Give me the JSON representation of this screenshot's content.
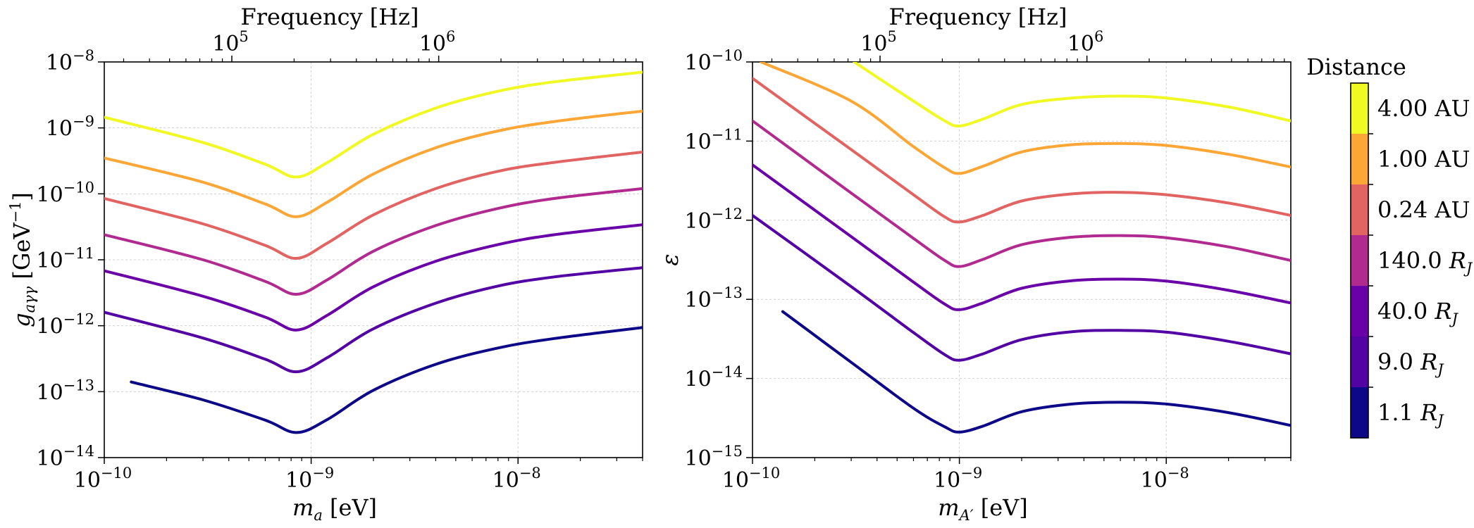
{
  "chart_data": [
    {
      "type": "line",
      "xscale": "log",
      "yscale": "log",
      "xlim": [
        1e-10,
        4e-08
      ],
      "ylim": [
        1e-14,
        1e-08
      ],
      "xlabel": "m_a [eV]",
      "ylabel": "g_aγγ [GeV^-1]",
      "top_xlabel": "Frequency [Hz]",
      "x_ticks": [
        "10^-10",
        "10^-9",
        "10^-8"
      ],
      "y_ticks": [
        "10^-14",
        "10^-13",
        "10^-12",
        "10^-11",
        "10^-10",
        "10^-9",
        "10^-8"
      ],
      "top_ticks": [
        "10^5",
        "10^6"
      ],
      "grid": true,
      "series": [
        {
          "name": "4.00 AU",
          "color": "#f0f921",
          "x": [
            1e-10,
            3e-10,
            6e-10,
            8.5e-10,
            1.2e-09,
            2e-09,
            4e-09,
            8e-09,
            1.5e-08,
            4e-08
          ],
          "y": [
            1.45e-09,
            6e-10,
            2.8e-10,
            1.8e-10,
            3e-10,
            8e-10,
            2e-09,
            3.6e-09,
            5e-09,
            7e-09
          ]
        },
        {
          "name": "1.00 AU",
          "color": "#fca636",
          "x": [
            1e-10,
            3e-10,
            6e-10,
            8.5e-10,
            1.2e-09,
            2e-09,
            4e-09,
            8e-09,
            1.5e-08,
            4e-08
          ],
          "y": [
            3.5e-10,
            1.5e-10,
            7e-11,
            4.5e-11,
            7.5e-11,
            2e-10,
            5e-10,
            9e-10,
            1.25e-09,
            1.8e-09
          ]
        },
        {
          "name": "0.24 AU",
          "color": "#e16462",
          "x": [
            1e-10,
            3e-10,
            6e-10,
            8.5e-10,
            1.2e-09,
            2e-09,
            4e-09,
            8e-09,
            1.5e-08,
            4e-08
          ],
          "y": [
            8.5e-11,
            3.5e-11,
            1.65e-11,
            1.05e-11,
            1.8e-11,
            4.8e-11,
            1.2e-10,
            2.2e-10,
            3e-10,
            4.3e-10
          ]
        },
        {
          "name": "140.0 R_J",
          "color": "#b12a90",
          "x": [
            1e-10,
            3e-10,
            6e-10,
            8.5e-10,
            1.2e-09,
            2e-09,
            4e-09,
            8e-09,
            1.5e-08,
            4e-08
          ],
          "y": [
            2.4e-11,
            1e-11,
            4.7e-12,
            3e-12,
            5e-12,
            1.35e-11,
            3.3e-11,
            6e-11,
            8.5e-11,
            1.2e-10
          ]
        },
        {
          "name": "40.0 R_J",
          "color": "#6a00a8",
          "x": [
            1e-10,
            3e-10,
            6e-10,
            8.5e-10,
            1.2e-09,
            2e-09,
            4e-09,
            8e-09,
            1.5e-08,
            4e-08
          ],
          "y": [
            6.8e-12,
            2.8e-12,
            1.35e-12,
            8.6e-13,
            1.45e-12,
            3.9e-12,
            9.5e-12,
            1.7e-11,
            2.4e-11,
            3.4e-11
          ]
        },
        {
          "name": "9.0 R_J",
          "color": "#5302a3",
          "x": [
            1e-10,
            3e-10,
            6e-10,
            8.5e-10,
            1.2e-09,
            2e-09,
            4e-09,
            8e-09,
            1.5e-08,
            4e-08
          ],
          "y": [
            1.6e-12,
            6.5e-13,
            3.1e-13,
            2e-13,
            3.3e-13,
            9e-13,
            2.2e-12,
            4e-12,
            5.5e-12,
            7.6e-12
          ]
        },
        {
          "name": "1.1 R_J",
          "color": "#0d0887",
          "x": [
            1.35e-10,
            3e-10,
            6e-10,
            8.5e-10,
            1.2e-09,
            2e-09,
            4e-09,
            8e-09,
            1.5e-08,
            4e-08
          ],
          "y": [
            1.4e-13,
            7.5e-14,
            3.7e-14,
            2.4e-14,
            3.8e-14,
            1.05e-13,
            2.6e-13,
            4.6e-13,
            6.4e-13,
            9.4e-13
          ]
        }
      ]
    },
    {
      "type": "line",
      "xscale": "log",
      "yscale": "log",
      "xlim": [
        1e-10,
        4e-08
      ],
      "ylim": [
        1e-15,
        1e-10
      ],
      "xlabel": "m_A' [eV]",
      "ylabel": "ε",
      "top_xlabel": "Frequency [Hz]",
      "x_ticks": [
        "10^-10",
        "10^-9",
        "10^-8"
      ],
      "y_ticks": [
        "10^-15",
        "10^-14",
        "10^-13",
        "10^-12",
        "10^-11",
        "10^-10"
      ],
      "top_ticks": [
        "10^5",
        "10^6"
      ],
      "grid": true,
      "series": [
        {
          "name": "4.00 AU",
          "color": "#f0f921",
          "x": [
            3.1e-10,
            6e-10,
            8.5e-10,
            1e-09,
            1.3e-09,
            2e-09,
            3.5e-09,
            6e-09,
            1e-08,
            2e-08,
            4e-08
          ],
          "y": [
            1e-10,
            3.2e-11,
            1.8e-11,
            1.55e-11,
            1.9e-11,
            2.9e-11,
            3.5e-11,
            3.7e-11,
            3.5e-11,
            2.7e-11,
            1.8e-11
          ]
        },
        {
          "name": "1.00 AU",
          "color": "#fca636",
          "x": [
            1.1e-10,
            3e-10,
            6e-10,
            8.5e-10,
            1e-09,
            1.3e-09,
            2e-09,
            3.5e-09,
            6e-09,
            1e-08,
            2e-08,
            4e-08
          ],
          "y": [
            1e-10,
            3.2e-11,
            8.5e-12,
            4.6e-12,
            3.9e-12,
            4.8e-12,
            7.3e-12,
            9e-12,
            9.3e-12,
            8.8e-12,
            6.8e-12,
            4.7e-12
          ]
        },
        {
          "name": "0.24 AU",
          "color": "#e16462",
          "x": [
            1e-10,
            3e-10,
            6e-10,
            8.5e-10,
            1e-09,
            1.3e-09,
            2e-09,
            3.5e-09,
            6e-09,
            1e-08,
            2e-08,
            4e-08
          ],
          "y": [
            6.2e-11,
            7.8e-12,
            2.1e-12,
            1.1e-12,
            9.5e-13,
            1.15e-12,
            1.75e-12,
            2.15e-12,
            2.25e-12,
            2.1e-12,
            1.65e-12,
            1.15e-12
          ]
        },
        {
          "name": "140.0 R_J",
          "color": "#b12a90",
          "x": [
            1e-10,
            3e-10,
            6e-10,
            8.5e-10,
            1e-09,
            1.3e-09,
            2e-09,
            3.5e-09,
            6e-09,
            1e-08,
            2e-08,
            4e-08
          ],
          "y": [
            1.8e-11,
            2.2e-12,
            5.9e-13,
            3.1e-13,
            2.6e-13,
            3.2e-13,
            4.9e-13,
            6.1e-13,
            6.4e-13,
            6e-13,
            4.6e-13,
            3.1e-13
          ]
        },
        {
          "name": "40.0 R_J",
          "color": "#6a00a8",
          "x": [
            1e-10,
            3e-10,
            6e-10,
            8.5e-10,
            1e-09,
            1.3e-09,
            2e-09,
            3.5e-09,
            6e-09,
            1e-08,
            2e-08,
            4e-08
          ],
          "y": [
            5e-12,
            6.2e-13,
            1.65e-13,
            8.7e-14,
            7.4e-14,
            9e-14,
            1.38e-13,
            1.72e-13,
            1.8e-13,
            1.7e-13,
            1.3e-13,
            9e-14
          ]
        },
        {
          "name": "9.0 R_J",
          "color": "#5302a3",
          "x": [
            1e-10,
            3e-10,
            6e-10,
            8.5e-10,
            1e-09,
            1.3e-09,
            2e-09,
            3.5e-09,
            6e-09,
            1e-08,
            2e-08,
            4e-08
          ],
          "y": [
            1.15e-12,
            1.45e-13,
            3.8e-14,
            2e-14,
            1.7e-14,
            2.05e-14,
            3.1e-14,
            3.9e-14,
            4.05e-14,
            3.85e-14,
            2.95e-14,
            2.05e-14
          ]
        },
        {
          "name": "1.1 R_J",
          "color": "#0d0887",
          "x": [
            1.4e-10,
            3e-10,
            6e-10,
            8.5e-10,
            1e-09,
            1.3e-09,
            2e-09,
            3.5e-09,
            6e-09,
            1e-08,
            2e-08,
            4e-08
          ],
          "y": [
            7e-14,
            1.6e-14,
            4.2e-15,
            2.45e-15,
            2.1e-15,
            2.5e-15,
            3.8e-15,
            4.75e-15,
            5e-15,
            4.75e-15,
            3.7e-15,
            2.55e-15
          ]
        }
      ]
    }
  ],
  "colorbar": {
    "title": "Distance",
    "labels": [
      "4.00 AU",
      "1.00 AU",
      "0.24 AU",
      "140.0 R_J",
      "40.0 R_J",
      "9.0 R_J",
      "1.1 R_J"
    ],
    "colors": [
      "#f0f921",
      "#fca636",
      "#e16462",
      "#b12a90",
      "#6a00a8",
      "#5302a3",
      "#0d0887"
    ]
  }
}
